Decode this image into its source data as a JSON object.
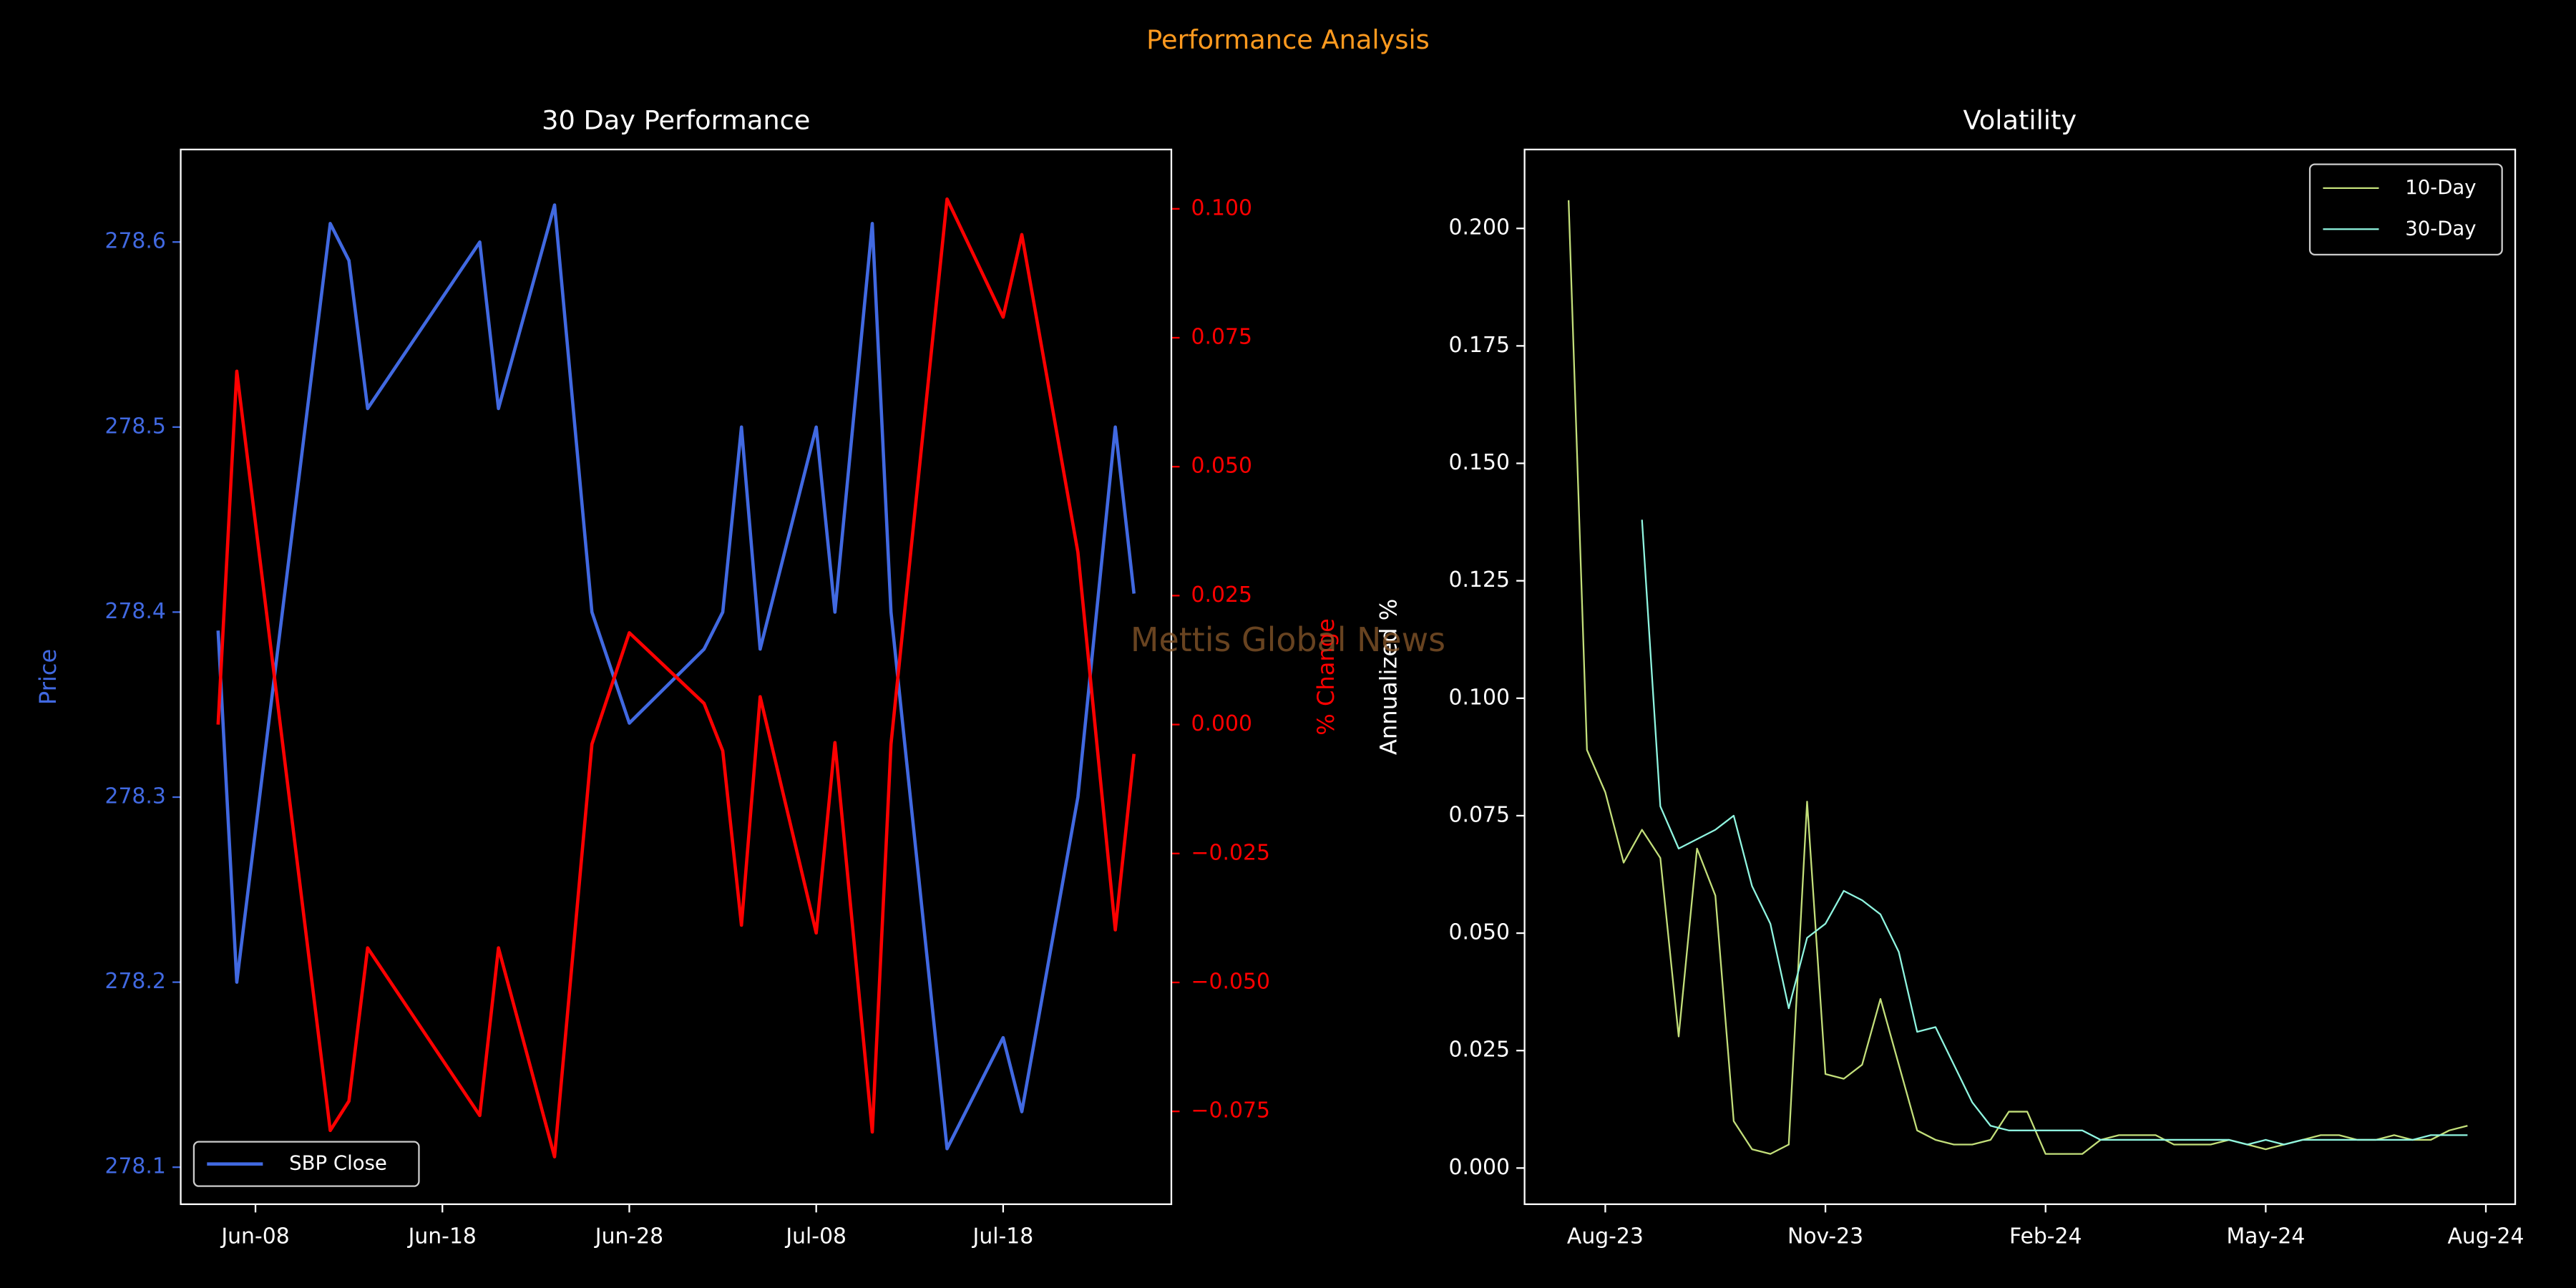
{
  "title": "Performance Analysis",
  "watermark": "Mettis Global News",
  "chart_data": [
    {
      "type": "line",
      "title": "30 Day Performance",
      "ylabel": "Price",
      "y2label": "% Change",
      "x": [
        "Jun-06",
        "Jun-07",
        "Jun-12",
        "Jun-13",
        "Jun-14",
        "Jun-20",
        "Jun-21",
        "Jun-24",
        "Jun-26",
        "Jun-28",
        "Jul-02",
        "Jul-03",
        "Jul-04",
        "Jul-05",
        "Jul-08",
        "Jul-09",
        "Jul-11",
        "Jul-12",
        "Jul-15",
        "Jul-18",
        "Jul-19",
        "Jul-22",
        "Jul-24",
        "Jul-25"
      ],
      "xlim": [
        "Jun-04",
        "Jul-27"
      ],
      "xticks": [
        "Jun-08",
        "Jun-18",
        "Jun-28",
        "Jul-08",
        "Jul-18"
      ],
      "ylim": [
        278.08,
        278.65
      ],
      "yticks": [
        278.1,
        278.2,
        278.3,
        278.4,
        278.5,
        278.6
      ],
      "y2lim": [
        -0.093,
        0.1115
      ],
      "y2ticks": [
        {
          "value": -0.075,
          "label": "−0.075"
        },
        {
          "value": -0.05,
          "label": "−0.050"
        },
        {
          "value": -0.025,
          "label": "−0.025"
        },
        {
          "value": 0,
          "label": "0.000"
        },
        {
          "value": 0.025,
          "label": "0.025"
        },
        {
          "value": 0.05,
          "label": "0.050"
        },
        {
          "value": 0.075,
          "label": "0.075"
        },
        {
          "value": 0.1,
          "label": "0.100"
        }
      ],
      "legend": "lower left",
      "series": [
        {
          "name": "SBP Close",
          "color": "#4169e1",
          "values": [
            278.39,
            278.2,
            278.61,
            278.59,
            278.51,
            278.6,
            278.51,
            278.62,
            278.4,
            278.34,
            278.38,
            278.4,
            278.5,
            278.38,
            278.5,
            278.4,
            278.61,
            278.4,
            278.11,
            278.17,
            278.13,
            278.3,
            278.5,
            278.41
          ]
        },
        {
          "color": "#ff0000",
          "axis": "y2",
          "values": [
            0,
            0.0685,
            -0.0787,
            -0.073,
            -0.0433,
            -0.0758,
            -0.0433,
            -0.0838,
            -0.0038,
            0.0178,
            0.0041,
            -0.0051,
            -0.0389,
            0.0054,
            -0.0404,
            -0.0035,
            -0.079,
            -0.0038,
            0.1019,
            0.079,
            0.095,
            0.0334,
            -0.0398,
            -0.0057
          ]
        }
      ]
    },
    {
      "type": "line",
      "title": "Volatility",
      "ylabel": "Annualized %",
      "categories": [
        null,
        null,
        "Aug-23",
        null,
        null,
        null,
        null,
        null,
        null,
        null,
        null,
        null,
        null,
        null,
        "Nov-23",
        null,
        null,
        null,
        null,
        null,
        null,
        null,
        null,
        null,
        null,
        null,
        "Feb-24",
        null,
        null,
        null,
        null,
        null,
        null,
        null,
        null,
        null,
        null,
        null,
        "May-24",
        null,
        null,
        null,
        null,
        null,
        null,
        null,
        null,
        null,
        null,
        null,
        "Aug-24"
      ],
      "ylim": [
        -0.0077,
        0.2168
      ],
      "yticks": [
        {
          "value": 0,
          "label": "0.000"
        },
        {
          "value": 0.025,
          "label": "0.025"
        },
        {
          "value": 0.05,
          "label": "0.050"
        },
        {
          "value": 0.075,
          "label": "0.075"
        },
        {
          "value": 0.1,
          "label": "0.100"
        },
        {
          "value": 0.125,
          "label": "0.125"
        },
        {
          "value": 0.15,
          "label": "0.150"
        },
        {
          "value": 0.175,
          "label": "0.175"
        },
        {
          "value": 0.2,
          "label": "0.200"
        }
      ],
      "legend": "upper right",
      "series": [
        {
          "name": "10-Day",
          "color": "#c3df7a",
          "values": [
            0.206,
            0.089,
            0.08,
            0.065,
            0.072,
            0.066,
            0.028,
            0.068,
            0.058,
            0.01,
            0.004,
            0.003,
            0.005,
            0.078,
            0.02,
            0.019,
            0.022,
            0.036,
            0.022,
            0.008,
            0.006,
            0.005,
            0.005,
            0.006,
            0.012,
            0.012,
            0.003,
            0.003,
            0.003,
            0.006,
            0.007,
            0.007,
            0.007,
            0.005,
            0.005,
            0.005,
            0.006,
            0.005,
            0.004,
            0.005,
            0.006,
            0.007,
            0.007,
            0.006,
            0.006,
            0.007,
            0.006,
            0.006,
            0.008,
            0.009,
            null
          ]
        },
        {
          "name": "30-Day",
          "color": "#8ff5e0",
          "values": [
            null,
            null,
            null,
            null,
            0.138,
            0.077,
            0.068,
            0.07,
            0.072,
            0.075,
            0.06,
            0.052,
            0.034,
            0.049,
            0.052,
            0.059,
            0.057,
            0.054,
            0.046,
            0.029,
            0.03,
            0.022,
            0.014,
            0.009,
            0.008,
            0.008,
            0.008,
            0.008,
            0.008,
            0.006,
            0.006,
            0.006,
            0.006,
            0.006,
            0.006,
            0.006,
            0.006,
            0.005,
            0.006,
            0.005,
            0.006,
            0.006,
            0.006,
            0.006,
            0.006,
            0.006,
            0.006,
            0.007,
            0.007,
            0.007,
            null
          ]
        }
      ]
    }
  ]
}
